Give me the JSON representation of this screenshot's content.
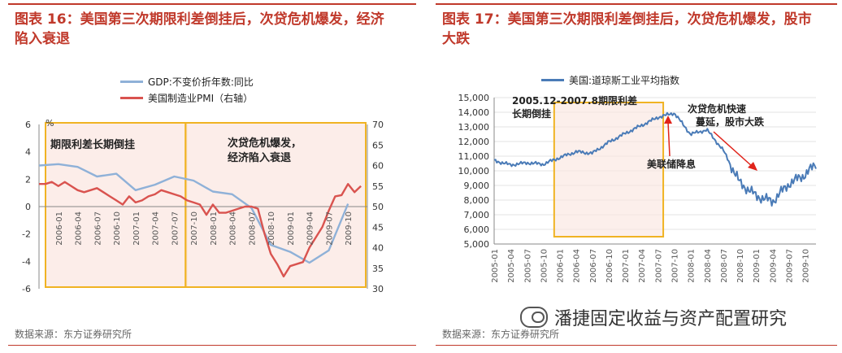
{
  "left": {
    "title": "图表 16：美国第三次期限利差倒挂后，次贷危机爆发，经济陷入衰退",
    "source": "数据来源：东方证券研究所",
    "legend": [
      {
        "label": "GDP:不变价折年数:同比",
        "color": "#8fb1d8"
      },
      {
        "label": "美国制造业PMI（右轴）",
        "color": "#d9534f"
      }
    ],
    "annotations": [
      "期限利差长期倒挂",
      "次贷危机爆发，经济陷入衰退"
    ],
    "y_unit_label": "%"
  },
  "right": {
    "title": "图表 17：美国第三次期限利差倒挂后，次贷危机爆发，股市大跌",
    "source": "数据来源：东方证券研究所",
    "legend": [
      {
        "label": "美国:道琼斯工业平均指数",
        "color": "#4a7bb7"
      }
    ],
    "annotations": [
      "2005.12-2007.8期限利差长期倒挂",
      "次贷危机快速蔓延，股市大跌",
      "美联储降息"
    ]
  },
  "watermark": "潘捷固定收益与资产配置研究",
  "chart_data": [
    {
      "type": "line",
      "x": [
        "2006-01",
        "2006-04",
        "2006-07",
        "2006-10",
        "2007-01",
        "2007-04",
        "2007-07",
        "2007-10",
        "2008-01",
        "2008-04",
        "2008-07",
        "2008-10",
        "2009-01",
        "2009-04",
        "2009-07",
        "2009-10"
      ],
      "x_range": [
        "2005-10",
        "2010-01"
      ],
      "x_ticks": [
        "2006-01",
        "2006-04",
        "2006-07",
        "2006-10",
        "2007-01",
        "2007-04",
        "2007-07",
        "2007-10",
        "2008-01",
        "2008-04",
        "2008-07",
        "2008-10",
        "2009-01",
        "2009-04",
        "2009-07",
        "2009-10"
      ],
      "series": [
        {
          "name": "GDP:不变价折年数:同比",
          "axis": "left",
          "x": [
            "2005-10",
            "2006-01",
            "2006-04",
            "2006-07",
            "2006-10",
            "2007-01",
            "2007-04",
            "2007-07",
            "2007-10",
            "2008-01",
            "2008-04",
            "2008-07",
            "2008-10",
            "2009-01",
            "2009-04",
            "2009-07",
            "2009-10"
          ],
          "values": [
            3.0,
            3.1,
            2.9,
            2.2,
            2.4,
            1.2,
            1.6,
            2.2,
            1.9,
            1.1,
            0.9,
            -0.1,
            -2.8,
            -3.3,
            -4.1,
            -3.2,
            0.2
          ]
        },
        {
          "name": "美国制造业PMI（右轴）",
          "axis": "right",
          "x": [
            "2005-10",
            "2005-11",
            "2005-12",
            "2006-01",
            "2006-02",
            "2006-03",
            "2006-04",
            "2006-05",
            "2006-06",
            "2006-07",
            "2006-08",
            "2006-09",
            "2006-10",
            "2006-11",
            "2006-12",
            "2007-01",
            "2007-02",
            "2007-03",
            "2007-04",
            "2007-05",
            "2007-06",
            "2007-07",
            "2007-08",
            "2007-09",
            "2007-10",
            "2007-11",
            "2007-12",
            "2008-01",
            "2008-02",
            "2008-03",
            "2008-04",
            "2008-05",
            "2008-06",
            "2008-07",
            "2008-08",
            "2008-09",
            "2008-10",
            "2008-11",
            "2008-12",
            "2009-01",
            "2009-02",
            "2009-03",
            "2009-04",
            "2009-05",
            "2009-06",
            "2009-07",
            "2009-08",
            "2009-09",
            "2009-10",
            "2009-11",
            "2009-12"
          ],
          "values": [
            55.5,
            55.5,
            56.0,
            55.0,
            56.0,
            55.0,
            54.0,
            53.5,
            54.0,
            54.5,
            53.5,
            52.5,
            51.5,
            50.5,
            52.5,
            51.0,
            51.5,
            52.5,
            53.0,
            54.0,
            53.5,
            53.0,
            52.5,
            51.5,
            51.0,
            50.5,
            48.0,
            50.5,
            48.5,
            48.5,
            49.0,
            49.5,
            50.0,
            50.0,
            49.5,
            43.5,
            38.5,
            36.0,
            33.0,
            35.5,
            36.0,
            36.5,
            40.0,
            42.5,
            45.0,
            49.0,
            52.5,
            52.8,
            55.5,
            53.5,
            55.0
          ]
        }
      ],
      "ylim_left": [
        -6,
        6
      ],
      "yticks_left": [
        -6,
        -4,
        -2,
        0,
        2,
        4,
        6
      ],
      "ylim_right": [
        30,
        70
      ],
      "yticks_right": [
        30,
        35,
        40,
        45,
        50,
        55,
        60,
        65,
        70
      ],
      "shaded_regions": [
        [
          "2006-01",
          "2007-09"
        ],
        [
          "2007-09",
          "2010-01"
        ]
      ],
      "legend_position": "top-center"
    },
    {
      "type": "line",
      "series": [
        {
          "name": "美国:道琼斯工业平均指数",
          "x": [
            "2005-01",
            "2005-04",
            "2005-07",
            "2005-10",
            "2006-01",
            "2006-04",
            "2006-07",
            "2006-10",
            "2007-01",
            "2007-04",
            "2007-07",
            "2007-10",
            "2008-01",
            "2008-04",
            "2008-07",
            "2008-10",
            "2009-01",
            "2009-04",
            "2009-07",
            "2009-10",
            "2009-12"
          ],
          "values": [
            10700,
            10400,
            10550,
            10450,
            10900,
            11300,
            11200,
            11950,
            12550,
            13100,
            13650,
            13950,
            12500,
            12800,
            11400,
            9200,
            8300,
            7900,
            9100,
            9750,
            10450
          ]
        }
      ],
      "x_range": [
        "2005-01",
        "2009-12"
      ],
      "x_ticks": [
        "2005-01",
        "2005-04",
        "2005-07",
        "2005-10",
        "2006-01",
        "2006-04",
        "2006-07",
        "2006-10",
        "2007-01",
        "2007-04",
        "2007-07",
        "2007-10",
        "2008-01",
        "2008-04",
        "2008-07",
        "2008-10",
        "2009-01",
        "2009-04",
        "2009-07",
        "2009-10"
      ],
      "ylim": [
        5000,
        15000
      ],
      "yticks": [
        5000,
        6000,
        7000,
        8000,
        9000,
        10000,
        11000,
        12000,
        13000,
        14000,
        15000
      ],
      "shaded_regions": [
        [
          "2005-12",
          "2007-08"
        ]
      ],
      "legend_position": "top-center"
    }
  ]
}
